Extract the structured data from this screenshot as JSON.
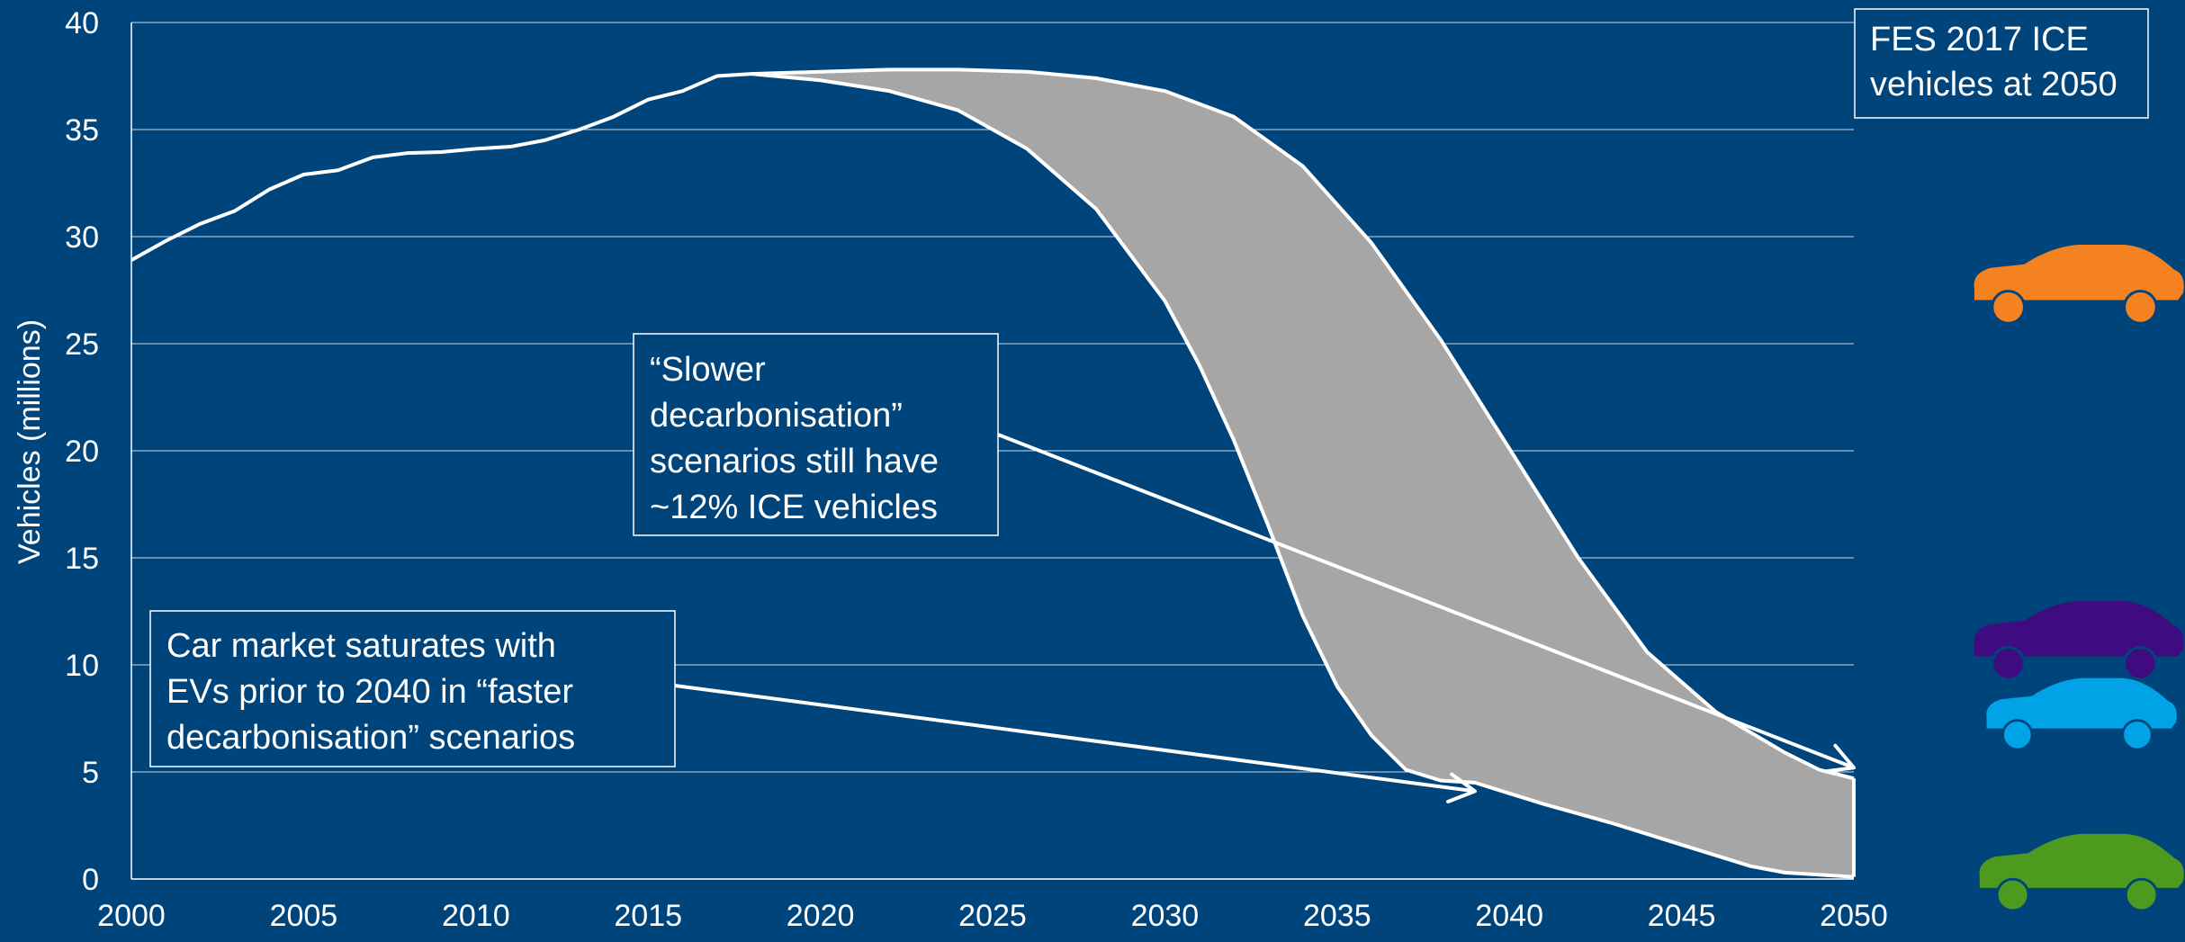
{
  "chart_data": {
    "type": "area",
    "title": "",
    "xlabel": "",
    "ylabel": "Vehicles  (millions)",
    "xlim": [
      2000,
      2050
    ],
    "ylim": [
      0,
      40
    ],
    "x_ticks": [
      2000,
      2005,
      2010,
      2015,
      2020,
      2025,
      2030,
      2035,
      2040,
      2045,
      2050
    ],
    "y_ticks": [
      0,
      5,
      10,
      15,
      20,
      25,
      30,
      35,
      40
    ],
    "grid": "horizontal",
    "historical": {
      "x": [
        2000,
        2001,
        2002,
        2003,
        2004,
        2005,
        2006,
        2007,
        2008,
        2009,
        2010,
        2011,
        2012,
        2013,
        2014,
        2015,
        2016,
        2017,
        2018
      ],
      "y": [
        28.9,
        29.8,
        30.6,
        31.2,
        32.2,
        32.9,
        33.1,
        33.7,
        33.9,
        33.95,
        34.1,
        34.2,
        34.5,
        35.0,
        35.6,
        36.4,
        36.8,
        37.5,
        37.6
      ]
    },
    "upper_envelope": {
      "x": [
        2018,
        2020,
        2022,
        2024,
        2026,
        2028,
        2030,
        2032,
        2034,
        2036,
        2038,
        2040,
        2042,
        2044,
        2046,
        2048,
        2049,
        2050
      ],
      "y": [
        37.6,
        37.7,
        37.8,
        37.8,
        37.7,
        37.4,
        36.8,
        35.6,
        33.3,
        29.7,
        25.2,
        20.1,
        15.0,
        10.6,
        7.8,
        5.9,
        5.1,
        4.7
      ]
    },
    "lower_envelope": {
      "x": [
        2018,
        2020,
        2022,
        2024,
        2026,
        2028,
        2030,
        2031,
        2032,
        2033,
        2034,
        2035,
        2036,
        2037,
        2038,
        2039,
        2040,
        2041,
        2043,
        2045,
        2047,
        2048,
        2049,
        2050
      ],
      "y": [
        37.6,
        37.3,
        36.8,
        35.9,
        34.1,
        31.3,
        27.0,
        24.0,
        20.5,
        16.5,
        12.3,
        9.0,
        6.7,
        5.1,
        4.6,
        4.5,
        4.0,
        3.5,
        2.6,
        1.6,
        0.6,
        0.3,
        0.2,
        0.1
      ]
    },
    "band_fill_color": "#a6a6a6",
    "line_color": "#ffffff",
    "background_color": "#00447c",
    "annotations": [
      {
        "id": "fes-box",
        "lines": [
          "FES 2017 ICE",
          "vehicles at 2050"
        ]
      },
      {
        "id": "slower-note",
        "lines": [
          "“Slower",
          "decarbonisation”",
          "scenarios still have",
          "~12% ICE vehicles"
        ],
        "arrow_to": {
          "x": 2050,
          "y": 5.2
        }
      },
      {
        "id": "faster-note",
        "lines": [
          "Car market saturates with",
          "EVs prior to 2040 in “faster",
          "decarbonisation” scenarios"
        ],
        "arrow_to": {
          "x": 2039,
          "y": 4.1
        }
      }
    ],
    "legend": {
      "placement": "right",
      "icons": [
        {
          "name": "car-orange-icon",
          "color": "#f58220"
        },
        {
          "name": "car-purple-icon",
          "color": "#3f0b81"
        },
        {
          "name": "car-blue-icon",
          "color": "#00a3e6"
        },
        {
          "name": "car-green-icon",
          "color": "#4e9a1f"
        }
      ]
    }
  }
}
